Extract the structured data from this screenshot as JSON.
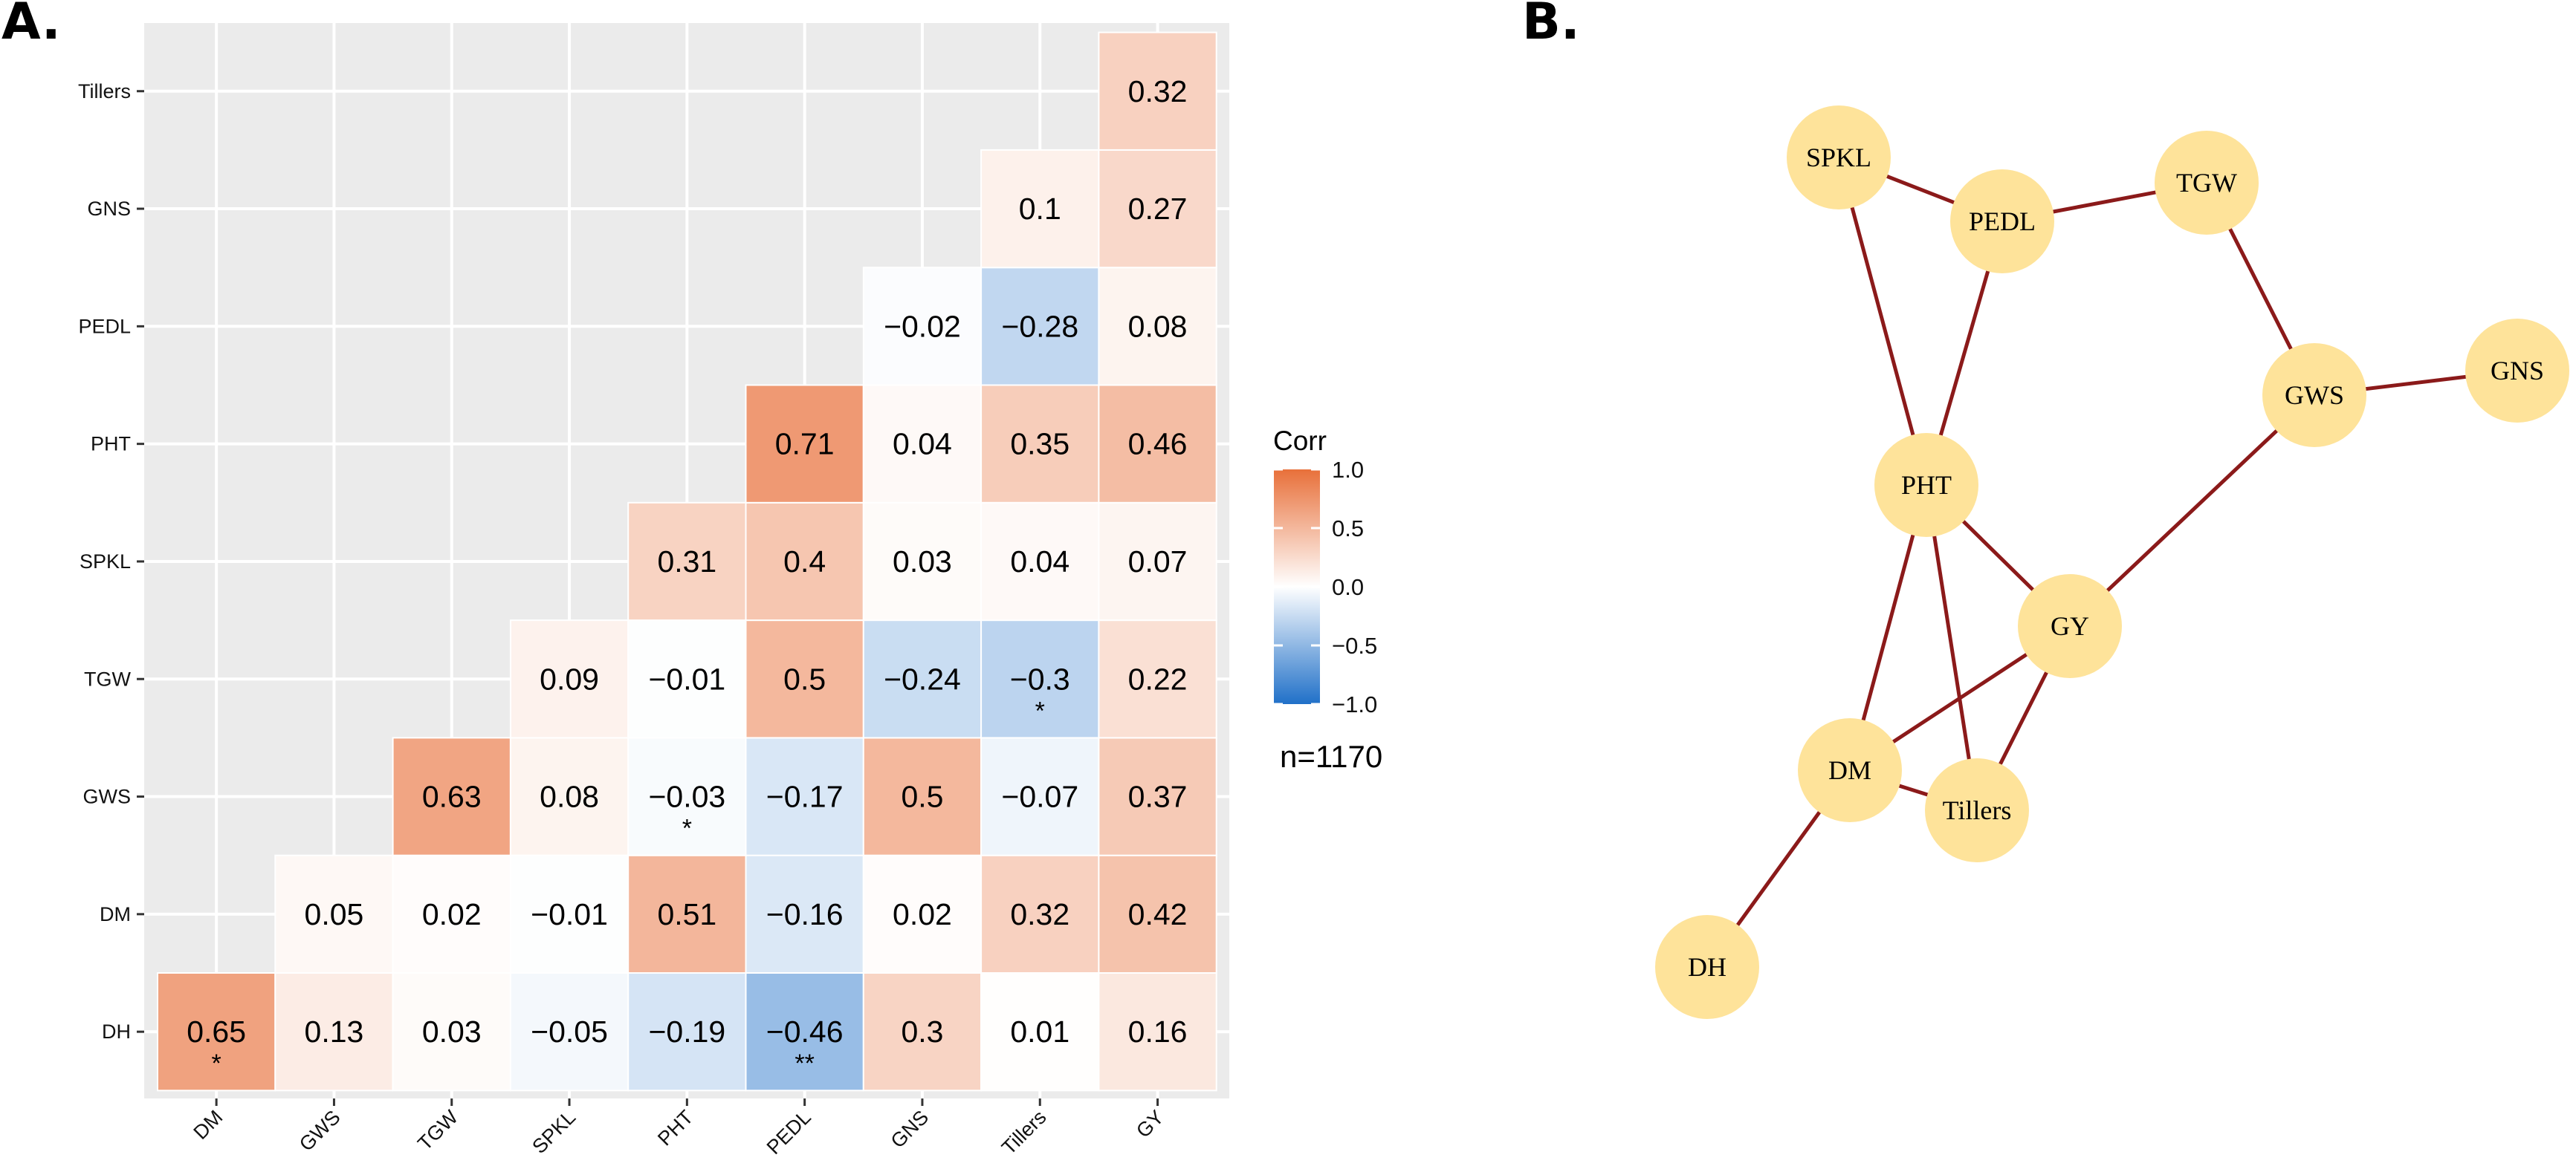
{
  "panels": {
    "a_label": "A.",
    "b_label": "B."
  },
  "chart_data": [
    {
      "type": "heatmap",
      "title": "",
      "x_labels": [
        "DM",
        "GWS",
        "TGW",
        "SPKL",
        "PHT",
        "PEDL",
        "GNS",
        "Tillers",
        "GY"
      ],
      "y_labels": [
        "DH",
        "DM",
        "GWS",
        "TGW",
        "SPKL",
        "PHT",
        "PEDL",
        "GNS",
        "Tillers"
      ],
      "cells": [
        {
          "row": "DH",
          "col": "DM",
          "value": 0.65,
          "sig": "*"
        },
        {
          "row": "DH",
          "col": "GWS",
          "value": 0.13,
          "sig": ""
        },
        {
          "row": "DH",
          "col": "TGW",
          "value": 0.03,
          "sig": ""
        },
        {
          "row": "DH",
          "col": "SPKL",
          "value": -0.05,
          "sig": ""
        },
        {
          "row": "DH",
          "col": "PHT",
          "value": -0.19,
          "sig": ""
        },
        {
          "row": "DH",
          "col": "PEDL",
          "value": -0.46,
          "sig": "**"
        },
        {
          "row": "DH",
          "col": "GNS",
          "value": 0.3,
          "sig": ""
        },
        {
          "row": "DH",
          "col": "Tillers",
          "value": 0.01,
          "sig": ""
        },
        {
          "row": "DH",
          "col": "GY",
          "value": 0.16,
          "sig": ""
        },
        {
          "row": "DM",
          "col": "GWS",
          "value": 0.05,
          "sig": ""
        },
        {
          "row": "DM",
          "col": "TGW",
          "value": 0.02,
          "sig": ""
        },
        {
          "row": "DM",
          "col": "SPKL",
          "value": -0.01,
          "sig": ""
        },
        {
          "row": "DM",
          "col": "PHT",
          "value": 0.51,
          "sig": ""
        },
        {
          "row": "DM",
          "col": "PEDL",
          "value": -0.16,
          "sig": ""
        },
        {
          "row": "DM",
          "col": "GNS",
          "value": 0.02,
          "sig": ""
        },
        {
          "row": "DM",
          "col": "Tillers",
          "value": 0.32,
          "sig": ""
        },
        {
          "row": "DM",
          "col": "GY",
          "value": 0.42,
          "sig": ""
        },
        {
          "row": "GWS",
          "col": "TGW",
          "value": 0.63,
          "sig": ""
        },
        {
          "row": "GWS",
          "col": "SPKL",
          "value": 0.08,
          "sig": ""
        },
        {
          "row": "GWS",
          "col": "PHT",
          "value": -0.03,
          "sig": "*"
        },
        {
          "row": "GWS",
          "col": "PEDL",
          "value": -0.17,
          "sig": ""
        },
        {
          "row": "GWS",
          "col": "GNS",
          "value": 0.5,
          "sig": ""
        },
        {
          "row": "GWS",
          "col": "Tillers",
          "value": -0.07,
          "sig": ""
        },
        {
          "row": "GWS",
          "col": "GY",
          "value": 0.37,
          "sig": ""
        },
        {
          "row": "TGW",
          "col": "SPKL",
          "value": 0.09,
          "sig": ""
        },
        {
          "row": "TGW",
          "col": "PHT",
          "value": -0.01,
          "sig": ""
        },
        {
          "row": "TGW",
          "col": "PEDL",
          "value": 0.5,
          "sig": ""
        },
        {
          "row": "TGW",
          "col": "GNS",
          "value": -0.24,
          "sig": ""
        },
        {
          "row": "TGW",
          "col": "Tillers",
          "value": -0.3,
          "sig": "*"
        },
        {
          "row": "TGW",
          "col": "GY",
          "value": 0.22,
          "sig": ""
        },
        {
          "row": "SPKL",
          "col": "PHT",
          "value": 0.31,
          "sig": ""
        },
        {
          "row": "SPKL",
          "col": "PEDL",
          "value": 0.4,
          "sig": ""
        },
        {
          "row": "SPKL",
          "col": "GNS",
          "value": 0.03,
          "sig": ""
        },
        {
          "row": "SPKL",
          "col": "Tillers",
          "value": 0.04,
          "sig": ""
        },
        {
          "row": "SPKL",
          "col": "GY",
          "value": 0.07,
          "sig": ""
        },
        {
          "row": "PHT",
          "col": "PEDL",
          "value": 0.71,
          "sig": ""
        },
        {
          "row": "PHT",
          "col": "GNS",
          "value": 0.04,
          "sig": ""
        },
        {
          "row": "PHT",
          "col": "Tillers",
          "value": 0.35,
          "sig": ""
        },
        {
          "row": "PHT",
          "col": "GY",
          "value": 0.46,
          "sig": ""
        },
        {
          "row": "PEDL",
          "col": "GNS",
          "value": -0.02,
          "sig": ""
        },
        {
          "row": "PEDL",
          "col": "Tillers",
          "value": -0.28,
          "sig": ""
        },
        {
          "row": "PEDL",
          "col": "GY",
          "value": 0.08,
          "sig": ""
        },
        {
          "row": "GNS",
          "col": "Tillers",
          "value": 0.1,
          "sig": ""
        },
        {
          "row": "GNS",
          "col": "GY",
          "value": 0.27,
          "sig": ""
        },
        {
          "row": "Tillers",
          "col": "GY",
          "value": 0.32,
          "sig": ""
        }
      ],
      "legend": {
        "title": "Corr",
        "range": [
          -1.0,
          1.0
        ],
        "ticks": [
          "1.0",
          "0.5",
          "0.0",
          "−0.5",
          "−1.0"
        ],
        "tick_values": [
          1.0,
          0.5,
          0.0,
          -0.5,
          -1.0
        ],
        "colors": {
          "low": "#2070C8",
          "mid": "#FFFFFF",
          "high": "#E8703A"
        }
      },
      "note": "n=1170",
      "colors": {
        "panel_background": "#EBEBEB",
        "grid": "#FFFFFF"
      }
    },
    {
      "type": "network",
      "title": "",
      "nodes": [
        "SPKL",
        "PEDL",
        "TGW",
        "GWS",
        "GNS",
        "PHT",
        "GY",
        "DM",
        "Tillers",
        "DH"
      ],
      "edges": [
        [
          "SPKL",
          "PEDL"
        ],
        [
          "PEDL",
          "TGW"
        ],
        [
          "SPKL",
          "PHT"
        ],
        [
          "PEDL",
          "PHT"
        ],
        [
          "TGW",
          "GWS"
        ],
        [
          "GWS",
          "GNS"
        ],
        [
          "GWS",
          "GY"
        ],
        [
          "PHT",
          "GY"
        ],
        [
          "PHT",
          "DM"
        ],
        [
          "PHT",
          "Tillers"
        ],
        [
          "GY",
          "DM"
        ],
        [
          "GY",
          "Tillers"
        ],
        [
          "DM",
          "Tillers"
        ],
        [
          "DM",
          "DH"
        ]
      ],
      "colors": {
        "node_fill": "#FEE39A",
        "edge": "#8B1A1A"
      }
    }
  ]
}
